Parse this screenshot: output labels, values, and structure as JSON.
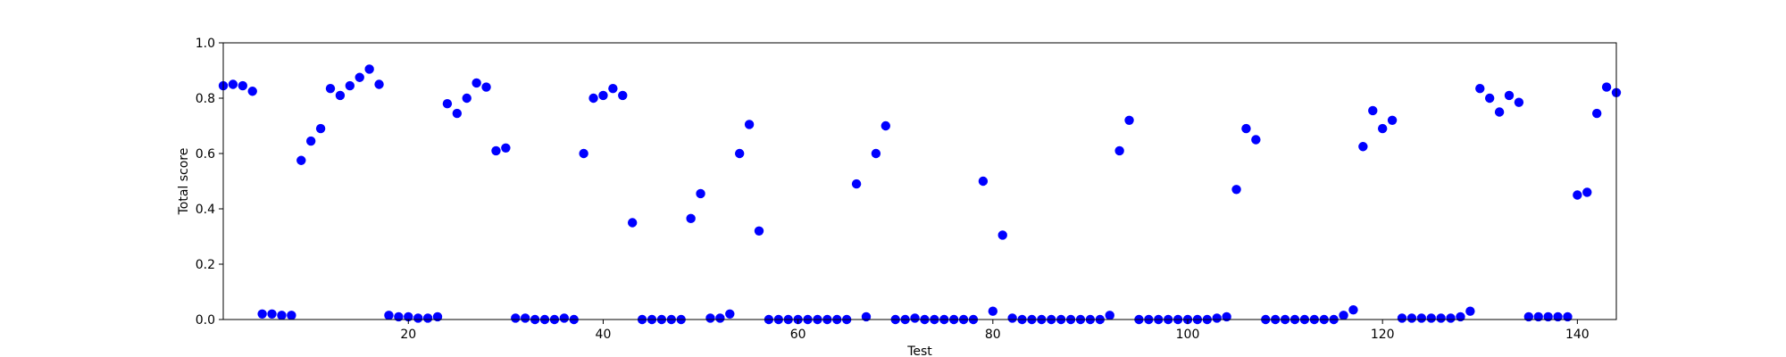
{
  "chart_data": {
    "type": "scatter",
    "title": "",
    "xlabel": "Test",
    "ylabel": "Total score",
    "xlim": [
      1,
      144
    ],
    "ylim": [
      0.0,
      1.0
    ],
    "xticks": [
      20,
      40,
      60,
      80,
      100,
      120,
      140
    ],
    "xtick_labels": [
      "20",
      "40",
      "60",
      "80",
      "100",
      "120",
      "140"
    ],
    "yticks": [
      0.0,
      0.2,
      0.4,
      0.6,
      0.8,
      1.0
    ],
    "ytick_labels": [
      "0.0",
      "0.2",
      "0.4",
      "0.6",
      "0.8",
      "1.0"
    ],
    "grid": false,
    "legend": "none",
    "marker_color": "#0000ff",
    "series": [
      {
        "x": [
          1,
          2,
          3,
          4,
          5,
          6,
          7,
          8,
          9,
          10,
          11,
          12,
          13,
          14,
          15,
          16,
          17,
          18,
          19,
          20,
          21,
          22,
          23,
          24,
          25,
          26,
          27,
          28,
          29,
          30,
          31,
          32,
          33,
          34,
          35,
          36,
          37,
          38,
          39,
          40,
          41,
          42,
          43,
          44,
          45,
          46,
          47,
          48,
          49,
          50,
          51,
          52,
          53,
          54,
          55,
          56,
          57,
          58,
          59,
          60,
          61,
          62,
          63,
          64,
          65,
          66,
          67,
          68,
          69,
          70,
          71,
          72,
          73,
          74,
          75,
          76,
          77,
          78,
          79,
          80,
          81,
          82,
          83,
          84,
          85,
          86,
          87,
          88,
          89,
          90,
          91,
          92,
          93,
          94,
          95,
          96,
          97,
          98,
          99,
          100,
          101,
          102,
          103,
          104,
          105,
          106,
          107,
          108,
          109,
          110,
          111,
          112,
          113,
          114,
          115,
          116,
          117,
          118,
          119,
          120,
          121,
          122,
          123,
          124,
          125,
          126,
          127,
          128,
          129,
          130,
          131,
          132,
          133,
          134,
          135,
          136,
          137,
          138,
          139,
          140,
          141,
          142,
          143,
          144
        ],
        "y": [
          0.845,
          0.85,
          0.845,
          0.825,
          0.02,
          0.02,
          0.015,
          0.015,
          0.575,
          0.645,
          0.69,
          0.835,
          0.81,
          0.845,
          0.875,
          0.905,
          0.85,
          0.015,
          0.01,
          0.01,
          0.005,
          0.005,
          0.01,
          0.78,
          0.745,
          0.8,
          0.855,
          0.84,
          0.61,
          0.62,
          0.005,
          0.005,
          0.0,
          0.0,
          0.0,
          0.005,
          0.0,
          0.6,
          0.8,
          0.81,
          0.835,
          0.81,
          0.35,
          0.0,
          0.0,
          0.0,
          0.0,
          0.0,
          0.365,
          0.455,
          0.005,
          0.005,
          0.02,
          0.6,
          0.705,
          0.32,
          0.0,
          0.0,
          0.0,
          0.0,
          0.0,
          0.0,
          0.0,
          0.0,
          0.0,
          0.49,
          0.01,
          0.6,
          0.7,
          0.0,
          0.0,
          0.005,
          0.0,
          0.0,
          0.0,
          0.0,
          0.0,
          0.0,
          0.5,
          0.03,
          0.305,
          0.005,
          0.0,
          0.0,
          0.0,
          0.0,
          0.0,
          0.0,
          0.0,
          0.0,
          0.0,
          0.015,
          0.61,
          0.72,
          0.0,
          0.0,
          0.0,
          0.0,
          0.0,
          0.0,
          0.0,
          0.0,
          0.005,
          0.01,
          0.47,
          0.69,
          0.65,
          0.0,
          0.0,
          0.0,
          0.0,
          0.0,
          0.0,
          0.0,
          0.0,
          0.015,
          0.035,
          0.625,
          0.755,
          0.69,
          0.72,
          0.005,
          0.005,
          0.005,
          0.005,
          0.005,
          0.005,
          0.01,
          0.03,
          0.835,
          0.8,
          0.75,
          0.81,
          0.785,
          0.01,
          0.01,
          0.01,
          0.01,
          0.01,
          0.45,
          0.46,
          0.745,
          0.84,
          0.82
        ]
      }
    ]
  }
}
